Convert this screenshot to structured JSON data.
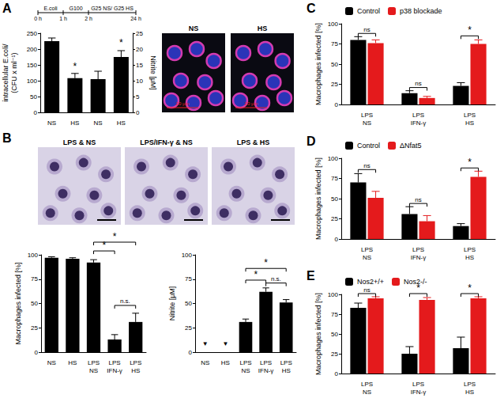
{
  "panel_labels": [
    "A",
    "B",
    "C",
    "D",
    "E"
  ],
  "timeline": {
    "times": [
      "0 h",
      "1 h",
      "2 h",
      "24 h"
    ],
    "phases": [
      "E.coli",
      "G100",
      "G25 NS/ G25 HS"
    ]
  },
  "images": [
    {
      "label": "NS",
      "scale_bar": "20 μm"
    },
    {
      "label": "HS",
      "scale_bar": "20 μm"
    },
    {
      "label": "LPS & NS"
    },
    {
      "label": "LPS/IFN-γ & NS"
    },
    {
      "label": "LPS & HS"
    }
  ],
  "chart_data": [
    {
      "type": "bar",
      "categories": [
        "NS",
        "HS",
        "NS",
        "HS"
      ],
      "y_label": "intracellular E.coli/\n(CFU x ml⁻¹)",
      "y2_label": "Nitrite [μM]",
      "ylim": [
        0,
        250
      ],
      "yticks": [
        0,
        50,
        100,
        150,
        200,
        250
      ],
      "y2lim": [
        0,
        25
      ],
      "y2ticks": [
        0,
        5,
        10,
        15,
        20,
        25
      ],
      "grid": false,
      "series": [
        {
          "color": "#000000",
          "values": [
            225,
            108,
            null,
            null
          ],
          "errors": [
            10,
            15,
            null,
            null
          ]
        },
        {
          "axis": "y2",
          "color": "#000000",
          "values": [
            null,
            null,
            10.5,
            17.5
          ],
          "errors": [
            null,
            null,
            2.5,
            2
          ]
        }
      ],
      "annotations": [
        {
          "from": 1,
          "to": 1,
          "y": 130,
          "text": "*"
        },
        {
          "axis": "y2",
          "from": 3,
          "to": 3,
          "y": 20.5,
          "text": "*"
        }
      ]
    },
    {
      "type": "bar",
      "categories": [
        "NS",
        "HS",
        "LPS\nNS",
        "LPS\nIFN-γ",
        "LPS\nHS"
      ],
      "y_label": "Macrophages infected [%]",
      "ylim": [
        0,
        100
      ],
      "yticks": [
        0,
        25,
        50,
        75,
        100
      ],
      "grid": false,
      "series": [
        {
          "color": "#000000",
          "values": [
            97,
            96,
            92,
            13,
            31
          ],
          "errors": [
            1,
            1,
            3,
            5,
            9
          ]
        }
      ],
      "annotations": [
        {
          "from": 2,
          "to": 3,
          "y": 104,
          "text": "*"
        },
        {
          "from": 2,
          "to": 4,
          "y": 113,
          "text": "*"
        },
        {
          "from": 3,
          "to": 4,
          "y": 48,
          "text": "n.s."
        }
      ]
    },
    {
      "type": "bar",
      "categories": [
        "NS",
        "HS",
        "LPS\nNS",
        "LPS\nIFN-γ",
        "LPS\nHS"
      ],
      "y_label": "Nitrite [μM]",
      "ylim": [
        0,
        100
      ],
      "yticks": [
        0,
        25,
        50,
        75,
        100
      ],
      "grid": false,
      "series": [
        {
          "color": "#000000",
          "values": [
            null,
            null,
            31,
            62,
            51
          ],
          "errors": [
            null,
            null,
            3,
            4,
            3
          ]
        }
      ],
      "annotations": [
        {
          "from": 0,
          "to": 0,
          "y": 5,
          "text": "▼"
        },
        {
          "from": 1,
          "to": 1,
          "y": 5,
          "text": "▼"
        },
        {
          "from": 2,
          "to": 3,
          "y": 74,
          "text": "*"
        },
        {
          "from": 2,
          "to": 4,
          "y": 86,
          "text": "*"
        },
        {
          "from": 3,
          "to": 4,
          "y": 71,
          "text": "n.s."
        }
      ]
    },
    {
      "type": "bar",
      "categories": [
        "LPS\nNS",
        "LPS\nIFN-γ",
        "LPS\nHS"
      ],
      "y_label": "Macrophages infected [%]",
      "ylim": [
        0,
        100
      ],
      "yticks": [
        0,
        25,
        50,
        75,
        100
      ],
      "grid": false,
      "legend": "top-left",
      "series": [
        {
          "name": "Control",
          "color": "#000000",
          "values": [
            80,
            14,
            23
          ],
          "errors": [
            4,
            3,
            4
          ]
        },
        {
          "name": "p38 blockade",
          "color": "#e41a1c",
          "values": [
            76,
            8,
            75
          ],
          "errors": [
            4,
            2,
            5
          ]
        }
      ],
      "annotations": [
        {
          "category": 0,
          "y": 88,
          "text": "ns"
        },
        {
          "category": 1,
          "y": 21,
          "text": "ns"
        },
        {
          "category": 2,
          "y": 85,
          "text": "*"
        }
      ]
    },
    {
      "type": "bar",
      "categories": [
        "LPS\nNS",
        "LPS\nIFN-γ",
        "LPS\nHS"
      ],
      "y_label": "Macrophages infected [%]",
      "ylim": [
        0,
        100
      ],
      "yticks": [
        0,
        25,
        50,
        75,
        100
      ],
      "grid": false,
      "legend": "top-left",
      "series": [
        {
          "name": "Control",
          "color": "#000000",
          "values": [
            70,
            31,
            16
          ],
          "errors": [
            11,
            9,
            3
          ]
        },
        {
          "name": "ΔNfat5",
          "color": "#e41a1c",
          "values": [
            51,
            22,
            77
          ],
          "errors": [
            8,
            7,
            7
          ]
        }
      ],
      "annotations": [
        {
          "category": 0,
          "y": 86,
          "text": "ns"
        },
        {
          "category": 1,
          "y": 44,
          "text": "ns"
        },
        {
          "category": 2,
          "y": 88,
          "text": "*"
        }
      ]
    },
    {
      "type": "bar",
      "categories": [
        "LPS\nNS",
        "LPS\nIFN-γ",
        "LPS\nHS"
      ],
      "y_label": "Macrophages infected [%]",
      "ylim": [
        0,
        100
      ],
      "yticks": [
        0,
        25,
        50,
        75,
        100
      ],
      "grid": false,
      "legend": "top-left",
      "series": [
        {
          "name": "Nos2+/+",
          "color": "#000000",
          "values": [
            83,
            25,
            32
          ],
          "errors": [
            6,
            9,
            14
          ]
        },
        {
          "name": "Nos2-/-",
          "color": "#e41a1c",
          "values": [
            95,
            93,
            95
          ],
          "errors": [
            2,
            3,
            2
          ]
        }
      ],
      "annotations": [
        {
          "category": 0,
          "y": 101,
          "text": "ns"
        },
        {
          "category": 1,
          "y": 101,
          "text": "*"
        },
        {
          "category": 2,
          "y": 101,
          "text": "*"
        }
      ]
    }
  ]
}
